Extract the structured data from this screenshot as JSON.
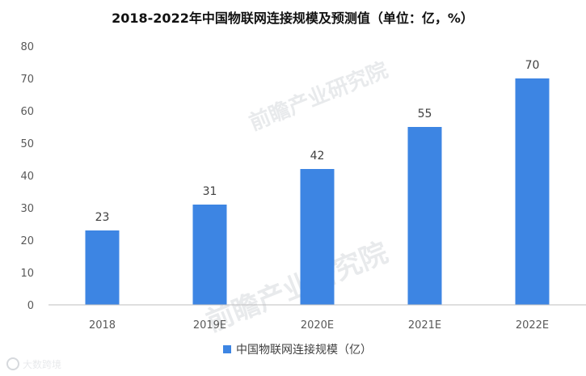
{
  "title": "2018-2022年中国物联网连接规模及预测值（单位：亿，%）",
  "watermark": "前瞻产业研究院",
  "source_logo": "大数跨境",
  "colors": {
    "bar": "#3D85E3",
    "axis": "#bfbfbf",
    "text": "#404040"
  },
  "chart_data": {
    "type": "bar",
    "categories": [
      "2018",
      "2019E",
      "2020E",
      "2021E",
      "2022E"
    ],
    "series": [
      {
        "name": "中国物联网连接规模（亿）",
        "values": [
          23,
          31,
          42,
          55,
          70
        ]
      }
    ],
    "ylim": [
      0,
      80
    ],
    "yticks": [
      0,
      10,
      20,
      30,
      40,
      50,
      60,
      70,
      80
    ],
    "grid": false,
    "legend": "bottom",
    "xlabel": "",
    "ylabel": ""
  }
}
